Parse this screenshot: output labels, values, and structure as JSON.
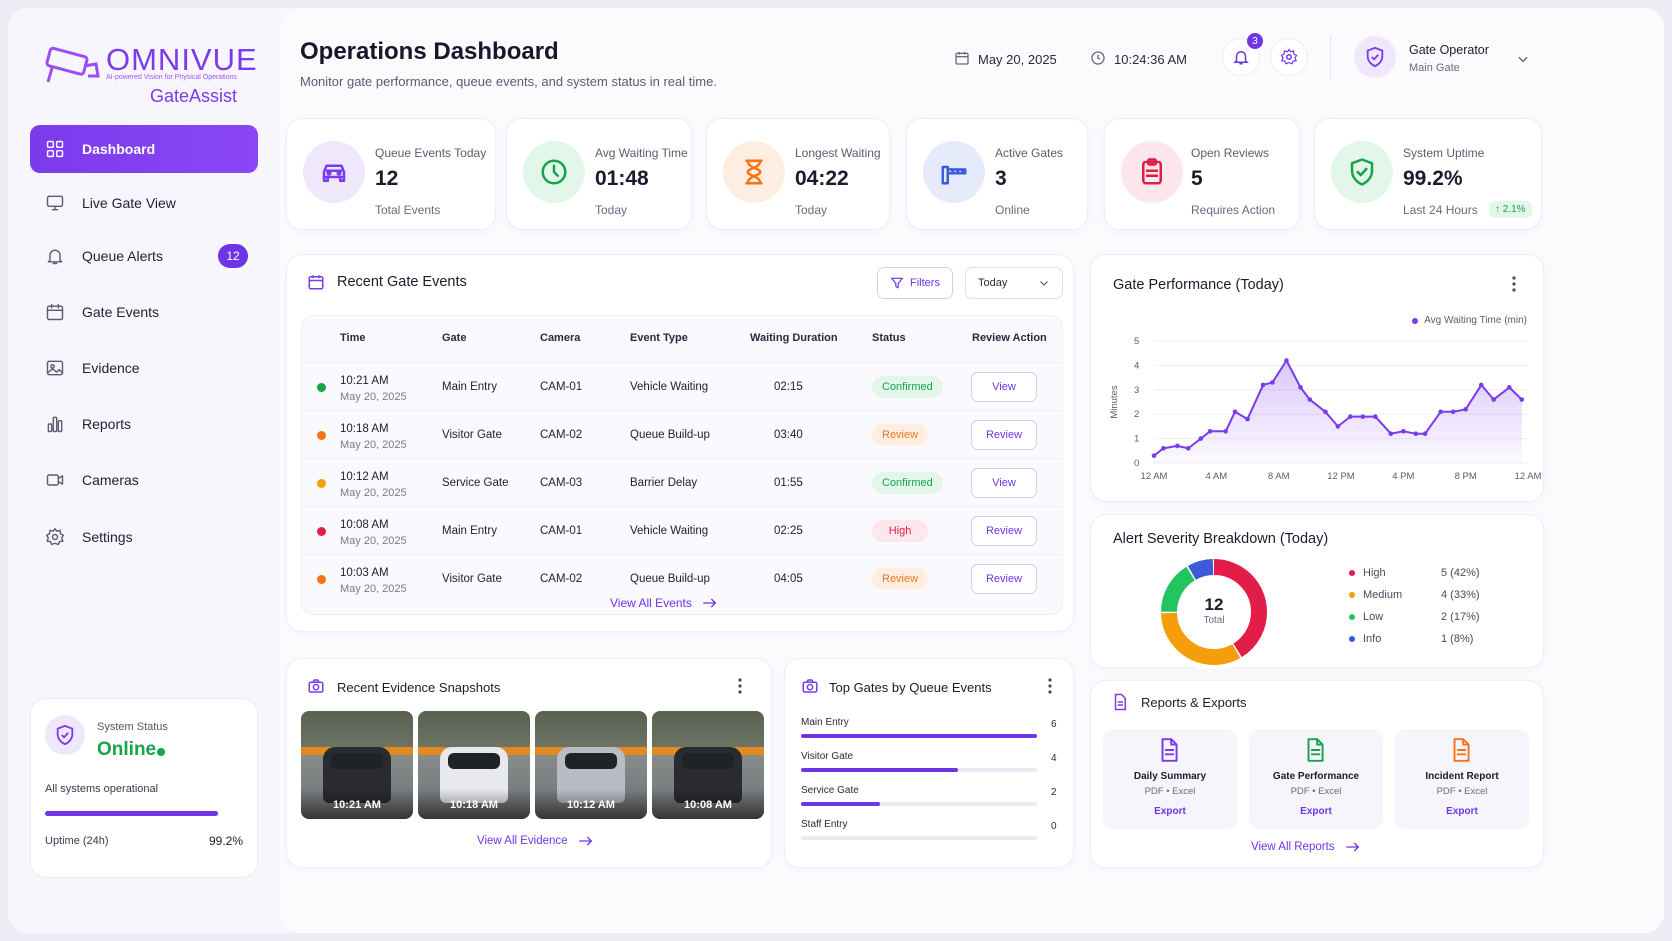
{
  "brand": {
    "name": "OMNIVUE",
    "tagline": "AI-powered Vision for Physical Operations",
    "product": "GateAssist",
    "accent": "#7c3aed"
  },
  "nav": {
    "items": [
      {
        "label": "Dashboard",
        "icon": "grid-icon",
        "active": true
      },
      {
        "label": "Live Gate View",
        "icon": "monitor-icon"
      },
      {
        "label": "Queue Alerts",
        "icon": "bell-icon",
        "badge": "12"
      },
      {
        "label": "Gate Events",
        "icon": "calendar-icon"
      },
      {
        "label": "Evidence",
        "icon": "image-icon"
      },
      {
        "label": "Reports",
        "icon": "bar-chart-icon"
      },
      {
        "label": "Cameras",
        "icon": "camera-icon"
      },
      {
        "label": "Settings",
        "icon": "gear-icon"
      }
    ]
  },
  "system_status": {
    "label": "System Status",
    "value": "Online",
    "message": "All systems operational",
    "uptime_label": "Uptime (24h)",
    "uptime_value": "99.2%",
    "uptime_fraction": 0.992
  },
  "header": {
    "title": "Operations Dashboard",
    "subtitle": "Monitor gate performance, queue events, and system status in real time.",
    "date": "May 20, 2025",
    "time": "10:24:36 AM",
    "notification_count": "3",
    "user_name": "Gate Operator",
    "user_role": "Main Gate"
  },
  "kpis": [
    {
      "label": "Queue Events Today",
      "value": "12",
      "sub": "Total Events",
      "icon": "car-icon",
      "color": "#7c3aed",
      "bg": "#efe8fd"
    },
    {
      "label": "Avg Waiting Time",
      "value": "01:48",
      "sub": "Today",
      "icon": "clock-icon",
      "color": "#16a34a",
      "bg": "#e3f6ea"
    },
    {
      "label": "Longest Waiting",
      "value": "04:22",
      "sub": "Today",
      "icon": "hourglass-icon",
      "color": "#f97316",
      "bg": "#fdeee1"
    },
    {
      "label": "Active Gates",
      "value": "3",
      "sub": "Online",
      "icon": "barrier-icon",
      "color": "#3b5bdb",
      "bg": "#e6ebfb"
    },
    {
      "label": "Open Reviews",
      "value": "5",
      "sub": "Requires Action",
      "icon": "clipboard-icon",
      "color": "#e11d48",
      "bg": "#fde7ec"
    },
    {
      "label": "System Uptime",
      "value": "99.2%",
      "sub": "Last 24 Hours",
      "icon": "shield-check-icon",
      "color": "#16a34a",
      "bg": "#e3f6ea",
      "trend": "↑ 2.1%"
    }
  ],
  "events": {
    "title": "Recent Gate Events",
    "filters_label": "Filters",
    "period": "Today",
    "columns": [
      "Time",
      "Gate",
      "Camera",
      "Event Type",
      "Waiting Duration",
      "Status",
      "Review Action"
    ],
    "rows": [
      {
        "time": "10:21 AM",
        "date": "May 20, 2025",
        "gate": "Main Entry",
        "camera": "CAM-01",
        "type": "Vehicle Waiting",
        "duration": "02:15",
        "status": "Confirmed",
        "status_color": "#16a34a",
        "status_bg": "#e3f6ea",
        "dot": "#16a34a",
        "action": "View"
      },
      {
        "time": "10:18 AM",
        "date": "May 20, 2025",
        "gate": "Visitor Gate",
        "camera": "CAM-02",
        "type": "Queue Build-up",
        "duration": "03:40",
        "status": "Review",
        "status_color": "#ea7a1c",
        "status_bg": "#fdeee1",
        "dot": "#f97316",
        "action": "Review"
      },
      {
        "time": "10:12 AM",
        "date": "May 20, 2025",
        "gate": "Service Gate",
        "camera": "CAM-03",
        "type": "Barrier Delay",
        "duration": "01:55",
        "status": "Confirmed",
        "status_color": "#16a34a",
        "status_bg": "#e3f6ea",
        "dot": "#f59e0b",
        "action": "View"
      },
      {
        "time": "10:08 AM",
        "date": "May 20, 2025",
        "gate": "Main Entry",
        "camera": "CAM-01",
        "type": "Vehicle Waiting",
        "duration": "02:25",
        "status": "High",
        "status_color": "#e11d48",
        "status_bg": "#fde7ec",
        "dot": "#e11d48",
        "action": "Review"
      },
      {
        "time": "10:03 AM",
        "date": "May 20, 2025",
        "gate": "Visitor Gate",
        "camera": "CAM-02",
        "type": "Queue Build-up",
        "duration": "04:05",
        "status": "Review",
        "status_color": "#ea7a1c",
        "status_bg": "#fdeee1",
        "dot": "#f97316",
        "action": "Review"
      }
    ],
    "view_all": "View All Events"
  },
  "performance": {
    "title": "Gate Performance (Today)",
    "legend": "Avg Waiting Time (min)",
    "chart_data": {
      "type": "area",
      "ylabel": "Minutes",
      "ylim": [
        0,
        5
      ],
      "yticks": [
        "0",
        "1",
        "2",
        "3",
        "4",
        "5"
      ],
      "xticks": [
        "12 AM",
        "4 AM",
        "8 AM",
        "12 PM",
        "4 PM",
        "8 PM",
        "12 AM"
      ],
      "xlim": [
        0,
        24
      ],
      "x": [
        0,
        0.6,
        1.5,
        2.2,
        3.0,
        3.6,
        4.6,
        5.2,
        6.0,
        7.0,
        7.6,
        8.5,
        9.4,
        10.0,
        11.0,
        11.8,
        12.6,
        13.4,
        14.2,
        15.2,
        16.0,
        16.8,
        17.4,
        18.4,
        19.2,
        20.0,
        21.0,
        21.8,
        22.8,
        23.6
      ],
      "values": [
        0.3,
        0.6,
        0.7,
        0.6,
        1.0,
        1.3,
        1.3,
        2.1,
        1.8,
        3.2,
        3.3,
        4.2,
        3.1,
        2.6,
        2.1,
        1.5,
        1.9,
        1.9,
        1.9,
        1.2,
        1.3,
        1.2,
        1.2,
        2.1,
        2.1,
        2.2,
        3.2,
        2.6,
        3.1,
        2.6
      ],
      "color": "#7c3aed"
    }
  },
  "alerts": {
    "title": "Alert Severity Breakdown (Today)",
    "total": "12",
    "total_label": "Total",
    "chart_data": {
      "type": "pie",
      "segments": [
        {
          "name": "High",
          "value": 5,
          "label": "5 (42%)",
          "color": "#e11d48"
        },
        {
          "name": "Medium",
          "value": 4,
          "label": "4 (33%)",
          "color": "#f59e0b"
        },
        {
          "name": "Low",
          "value": 2,
          "label": "2 (17%)",
          "color": "#22c55e"
        },
        {
          "name": "Info",
          "value": 1,
          "label": "1 (8%)",
          "color": "#3b5bdb"
        }
      ]
    }
  },
  "evidence": {
    "title": "Recent Evidence Snapshots",
    "snapshots": [
      {
        "time": "10:21 AM",
        "car": "#2a2b30"
      },
      {
        "time": "10:18 AM",
        "car": "#e8e9ec"
      },
      {
        "time": "10:12 AM",
        "car": "#b9bcc2"
      },
      {
        "time": "10:08 AM",
        "car": "#2a2b30"
      }
    ],
    "view_all": "View All Evidence"
  },
  "top_gates": {
    "title": "Top Gates by Queue Events",
    "chart_data": {
      "type": "bar",
      "categories": [
        "Main Entry",
        "Visitor Gate",
        "Service Gate",
        "Staff Entry"
      ],
      "values": [
        6,
        4,
        2,
        0
      ],
      "labels": [
        "6",
        "4",
        "2",
        "0"
      ],
      "xlim": [
        0,
        6
      ]
    }
  },
  "reports": {
    "title": "Reports & Exports",
    "items": [
      {
        "name": "Daily Summary",
        "formats": "PDF • Excel",
        "action": "Export",
        "color": "#7c3aed"
      },
      {
        "name": "Gate Performance",
        "formats": "PDF • Excel",
        "action": "Export",
        "color": "#16a34a"
      },
      {
        "name": "Incident Report",
        "formats": "PDF • Excel",
        "action": "Export",
        "color": "#f97316"
      }
    ],
    "view_all": "View All Reports"
  }
}
